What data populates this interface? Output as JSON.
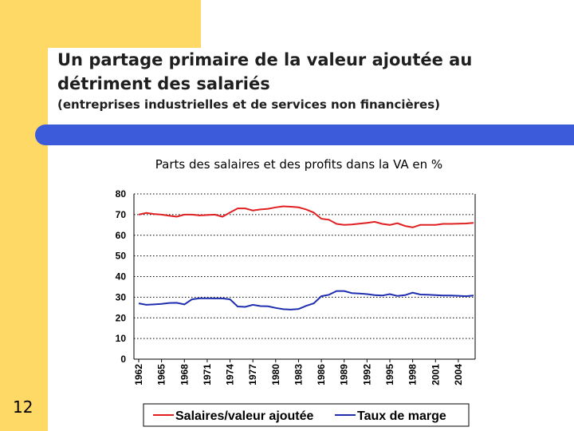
{
  "slide": {
    "title": "Un partage primaire de la valeur ajoutée au détriment des salariés",
    "subtitle": "(entreprises industrielles et de services non financières)",
    "page_number": "12"
  },
  "colors": {
    "sidebar": "#FFD966",
    "band": "#3B5BDB",
    "salaires": "#E02020",
    "taux": "#1F2FB0"
  },
  "chart_data": {
    "type": "line",
    "title": "Parts des salaires et des profits dans la VA en %",
    "ylim": [
      0,
      80
    ],
    "yticks": [
      "0",
      "10",
      "20",
      "30",
      "40",
      "50",
      "60",
      "70",
      "80"
    ],
    "xtick_labels": [
      "1962",
      "1965",
      "1968",
      "1971",
      "1974",
      "1977",
      "1980",
      "1983",
      "1986",
      "1989",
      "1992",
      "1995",
      "1998",
      "2001",
      "2004"
    ],
    "grid": true,
    "legend": "bottom",
    "x": [
      1962,
      1963,
      1964,
      1965,
      1966,
      1967,
      1968,
      1969,
      1970,
      1971,
      1972,
      1973,
      1974,
      1975,
      1976,
      1977,
      1978,
      1979,
      1980,
      1981,
      1982,
      1983,
      1984,
      1985,
      1986,
      1987,
      1988,
      1989,
      1990,
      1991,
      1992,
      1993,
      1994,
      1995,
      1996,
      1997,
      1998,
      1999,
      2000,
      2001,
      2002,
      2003,
      2004,
      2005,
      2006
    ],
    "series": [
      {
        "name": "Salaires/valeur ajoutée",
        "values": [
          70,
          70.8,
          70.3,
          70,
          69.5,
          69,
          70,
          70,
          69.6,
          69.8,
          70,
          69,
          71,
          73,
          73,
          72,
          72.5,
          72.8,
          73.5,
          74,
          73.8,
          73.5,
          72.5,
          71,
          68,
          67.5,
          65.5,
          65,
          65.2,
          65.6,
          66,
          66.5,
          65.5,
          65,
          65.8,
          64.5,
          63.8,
          65,
          65,
          65,
          65.5,
          65.5,
          65.6,
          65.7,
          66
        ]
      },
      {
        "name": "Taux de marge",
        "values": [
          27,
          26.3,
          26.5,
          26.8,
          27.2,
          27.3,
          26.5,
          29,
          29.5,
          29.5,
          29.4,
          29.4,
          29,
          25.5,
          25.3,
          26.3,
          25.7,
          25.6,
          24.8,
          24.2,
          24,
          24.3,
          25.8,
          27,
          30.5,
          31.2,
          33,
          33,
          32,
          31.8,
          31.5,
          31,
          30.8,
          31.5,
          30.6,
          31,
          32.2,
          31.3,
          31.2,
          31,
          30.8,
          30.8,
          30.7,
          30.5,
          30.8
        ]
      }
    ]
  }
}
